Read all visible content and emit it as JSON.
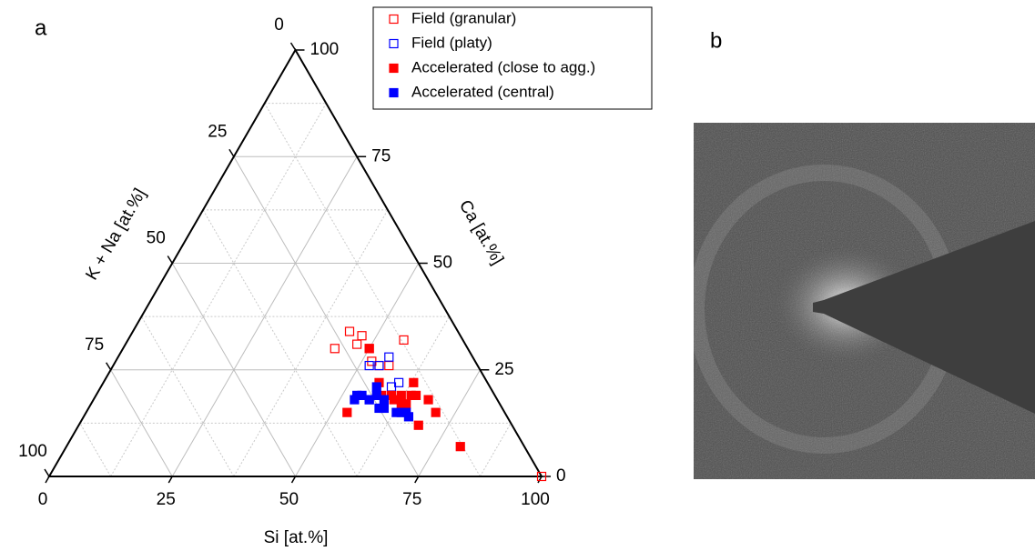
{
  "chart_data": {
    "type": "ternary",
    "panel_labels": [
      "a",
      "b"
    ],
    "bottom_axis": {
      "label": "Si [at.%]",
      "lim": [
        0,
        100
      ],
      "ticks": [
        0,
        25,
        50,
        75,
        100
      ]
    },
    "right_axis": {
      "label": "Ca [at.%]",
      "lim": [
        0,
        100
      ],
      "ticks": [
        0,
        25,
        50,
        75,
        100
      ]
    },
    "left_axis": {
      "label": "K + Na [at.%]",
      "lim": [
        0,
        100
      ],
      "ticks": [
        0,
        25,
        50,
        75,
        100
      ]
    },
    "minor_grid": [
      12.5,
      37.5,
      62.5,
      87.5
    ],
    "grid": true,
    "legend": "top-right",
    "series": [
      {
        "name": "Field (granular)",
        "color": "#ff0000",
        "filled": false,
        "si": [
          44,
          47,
          43,
          47,
          50,
          56,
          54,
          56,
          52,
          100
        ],
        "ca": [
          34,
          33,
          30,
          31,
          30,
          32,
          26,
          26,
          27,
          0
        ]
      },
      {
        "name": "Field (platy)",
        "color": "#0000ff",
        "filled": false,
        "si": [
          55,
          52,
          54,
          59,
          60
        ],
        "ca": [
          28,
          26,
          26,
          21,
          22
        ]
      },
      {
        "name": "Accelerated (close to agg.)",
        "color": "#ff0000",
        "filled": true,
        "si": [
          50,
          56,
          60,
          61,
          62,
          64,
          63,
          65,
          64,
          63,
          68,
          71,
          69,
          53,
          80,
          58
        ],
        "ca": [
          30,
          22,
          19,
          18,
          19,
          19,
          22,
          19,
          17,
          17,
          18,
          15,
          12,
          15,
          7,
          19
        ]
      },
      {
        "name": "Accelerated (central)",
        "color": "#0000ff",
        "filled": true,
        "si": [
          53,
          53,
          56,
          57,
          56,
          56,
          59,
          60,
          63,
          64,
          65,
          66,
          59,
          54
        ],
        "ca": [
          19,
          18,
          18,
          19,
          21,
          18,
          16,
          16,
          15,
          15,
          15,
          14,
          18,
          19
        ]
      }
    ]
  }
}
